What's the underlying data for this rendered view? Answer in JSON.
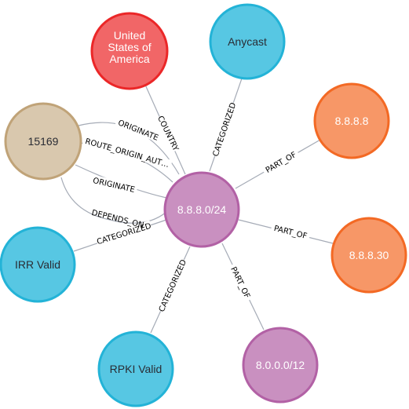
{
  "graph": {
    "nodes": [
      {
        "id": "prefix",
        "label": "8.8.8.0/24",
        "color": "#c990c0",
        "border": "#b261a5",
        "text": "#ffffff"
      },
      {
        "id": "usa",
        "label": "United\nStates of\nAmerica",
        "color": "#f16667",
        "border": "#eb2728",
        "text": "#ffffff"
      },
      {
        "id": "anycast",
        "label": "Anycast",
        "color": "#57c7e3",
        "border": "#23b3d7",
        "text": "#2a2c34"
      },
      {
        "id": "as15169",
        "label": "15169",
        "color": "#d9c8ae",
        "border": "#c0a378",
        "text": "#2a2c34"
      },
      {
        "id": "ip8888",
        "label": "8.8.8.8",
        "color": "#f79767",
        "border": "#f36924",
        "text": "#ffffff"
      },
      {
        "id": "ip88830",
        "label": "8.8.8.30",
        "color": "#f79767",
        "border": "#f36924",
        "text": "#ffffff"
      },
      {
        "id": "irr",
        "label": "IRR Valid",
        "color": "#57c7e3",
        "border": "#23b3d7",
        "text": "#2a2c34"
      },
      {
        "id": "rpki",
        "label": "RPKI Valid",
        "color": "#57c7e3",
        "border": "#23b3d7",
        "text": "#2a2c34"
      },
      {
        "id": "p800012",
        "label": "8.0.0.0/12",
        "color": "#c990c0",
        "border": "#b261a5",
        "text": "#ffffff"
      }
    ],
    "edges": [
      {
        "label": "COUNTRY"
      },
      {
        "label": "CATEGORIZED"
      },
      {
        "label": "PART_OF"
      },
      {
        "label": "PART_OF"
      },
      {
        "label": "PART_OF"
      },
      {
        "label": "CATEGORIZED"
      },
      {
        "label": "CATEGORIZED"
      },
      {
        "label": "ORIGINATE"
      },
      {
        "label": "ROUTE_ORIGIN_AUT…"
      },
      {
        "label": "ORIGINATE"
      },
      {
        "label": "DEPENDS_ON"
      }
    ]
  }
}
